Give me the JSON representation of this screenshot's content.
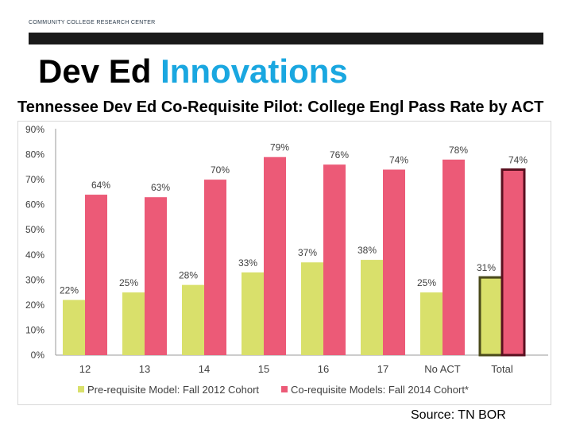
{
  "header": {
    "org": "COMMUNITY COLLEGE RESEARCH CENTER",
    "title_part1": "Dev Ed",
    "title_part2": "Innovations"
  },
  "source": "Source: TN BOR",
  "chart_data": {
    "type": "bar",
    "title": "Tennessee Dev Ed Co-Requisite Pilot: College Engl Pass Rate by ACT",
    "categories": [
      "12",
      "13",
      "14",
      "15",
      "16",
      "17",
      "No ACT",
      "Total"
    ],
    "series": [
      {
        "name": "Pre-requisite Model: Fall 2012 Cohort",
        "values": [
          22,
          25,
          28,
          33,
          37,
          38,
          25,
          31
        ],
        "labels": [
          "22%",
          "25%",
          "28%",
          "33%",
          "37%",
          "38%",
          "25%",
          "31%"
        ],
        "color": "#d9e06b"
      },
      {
        "name": "Co-requisite Models: Fall 2014 Cohort*",
        "values": [
          64,
          63,
          70,
          79,
          76,
          74,
          78,
          74
        ],
        "labels": [
          "64%",
          "63%",
          "70%",
          "79%",
          "76%",
          "74%",
          "78%",
          "74%"
        ],
        "color": "#ec5a77"
      }
    ],
    "ylim": [
      0,
      90
    ],
    "yticks": [
      "0%",
      "10%",
      "20%",
      "30%",
      "40%",
      "50%",
      "60%",
      "70%",
      "80%",
      "90%"
    ],
    "highlight_category": "Total",
    "highlight_colors": [
      "#4a4a1a",
      "#5a1020"
    ],
    "legend": "bottom",
    "grid": false
  }
}
